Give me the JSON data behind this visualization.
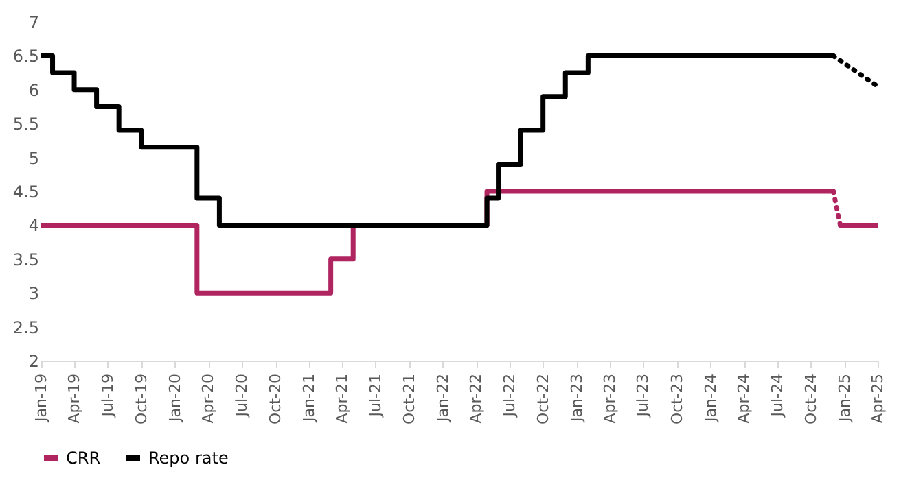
{
  "chart_data": {
    "type": "step",
    "xlim": [
      "2019-01-01",
      "2025-04-01"
    ],
    "xticks": [
      {
        "value": "2019-01",
        "label": "Jan-19"
      },
      {
        "value": "2019-04",
        "label": "Apr-19"
      },
      {
        "value": "2019-07",
        "label": "Jul-19"
      },
      {
        "value": "2019-10",
        "label": "Oct-19"
      },
      {
        "value": "2020-01",
        "label": "Jan-20"
      },
      {
        "value": "2020-04",
        "label": "Apr-20"
      },
      {
        "value": "2020-07",
        "label": "Jul-20"
      },
      {
        "value": "2020-10",
        "label": "Oct-20"
      },
      {
        "value": "2021-01",
        "label": "Jan-21"
      },
      {
        "value": "2021-04",
        "label": "Apr-21"
      },
      {
        "value": "2021-07",
        "label": "Jul-21"
      },
      {
        "value": "2021-10",
        "label": "Oct-21"
      },
      {
        "value": "2022-01",
        "label": "Jan-22"
      },
      {
        "value": "2022-04",
        "label": "Apr-22"
      },
      {
        "value": "2022-07",
        "label": "Jul-22"
      },
      {
        "value": "2022-10",
        "label": "Oct-22"
      },
      {
        "value": "2023-01",
        "label": "Jan-23"
      },
      {
        "value": "2023-04",
        "label": "Apr-23"
      },
      {
        "value": "2023-07",
        "label": "Jul-23"
      },
      {
        "value": "2023-10",
        "label": "Oct-23"
      },
      {
        "value": "2024-01",
        "label": "Jan-24"
      },
      {
        "value": "2024-04",
        "label": "Apr-24"
      },
      {
        "value": "2024-07",
        "label": "Jul-24"
      },
      {
        "value": "2024-10",
        "label": "Oct-24"
      },
      {
        "value": "2025-01",
        "label": "Jan-25"
      },
      {
        "value": "2025-04",
        "label": "Apr-25"
      }
    ],
    "ylim": [
      2,
      7
    ],
    "yticks": [
      2,
      2.5,
      3,
      3.5,
      4,
      4.5,
      5,
      5.5,
      6,
      6.5,
      7
    ],
    "grid": false,
    "legend": "bottom",
    "series": [
      {
        "name": "CRR",
        "color": "#b0255f",
        "x": [
          "2019-01-01",
          "2020-03-01",
          "2021-03-01",
          "2021-05-01",
          "2022-05-01",
          "2024-12-01"
        ],
        "values": [
          4,
          3,
          3.5,
          4,
          4.5,
          4.5
        ]
      },
      {
        "color": "#b0255f",
        "type": "line",
        "line_style": "dotted",
        "x": [
          "2024-12-01",
          "2024-12-20"
        ],
        "values": [
          4.5,
          4
        ]
      },
      {
        "color": "#b0255f",
        "x": [
          "2024-12-20",
          "2025-04-01"
        ],
        "values": [
          4,
          4
        ]
      },
      {
        "name": "Repo rate",
        "color": "#000000",
        "x": [
          "2019-01-01",
          "2019-02-01",
          "2019-04-01",
          "2019-06-01",
          "2019-08-01",
          "2019-10-01",
          "2020-03-01",
          "2020-05-01",
          "2022-05-01",
          "2022-06-01",
          "2022-08-01",
          "2022-10-01",
          "2022-12-01",
          "2023-02-01",
          "2024-12-01"
        ],
        "values": [
          6.5,
          6.25,
          6,
          5.75,
          5.4,
          5.15,
          4.4,
          4,
          4.4,
          4.9,
          5.4,
          5.9,
          6.25,
          6.5,
          6.5
        ]
      },
      {
        "color": "#000000",
        "type": "line",
        "line_style": "dotted",
        "x": [
          "2024-12-01",
          "2025-04-01"
        ],
        "values": [
          6.5,
          6.05
        ]
      }
    ]
  }
}
